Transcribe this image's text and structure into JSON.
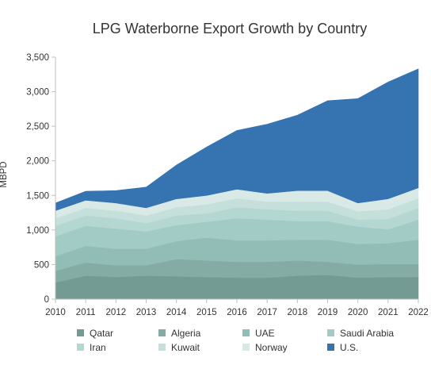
{
  "chart_data": {
    "type": "area",
    "stacked": true,
    "title": "LPG Waterborne Export Growth by Country",
    "xlabel": "",
    "ylabel": "MBPD",
    "x": [
      "2010",
      "2011",
      "2012",
      "2013",
      "2014",
      "2015",
      "2016",
      "2017",
      "2018",
      "2019",
      "2020",
      "2021",
      "2022"
    ],
    "ylim": [
      0,
      3500
    ],
    "yticks": [
      0,
      500,
      1000,
      1500,
      2000,
      2500,
      3000,
      3500
    ],
    "ytick_labels": [
      "0",
      "500",
      "1,000",
      "1,500",
      "2,000",
      "2,500",
      "3,000",
      "3,500"
    ],
    "grid": false,
    "legend_position": "bottom",
    "series": [
      {
        "name": "Qatar",
        "color": "#739b93",
        "values": [
          240,
          340,
          320,
          340,
          330,
          320,
          310,
          310,
          340,
          350,
          310,
          320,
          320
        ]
      },
      {
        "name": "Algeria",
        "color": "#84aca4",
        "values": [
          170,
          190,
          170,
          150,
          250,
          240,
          230,
          230,
          220,
          190,
          190,
          190,
          190
        ]
      },
      {
        "name": "UAE",
        "color": "#92bcb6",
        "values": [
          210,
          240,
          240,
          240,
          260,
          330,
          310,
          310,
          300,
          320,
          300,
          300,
          350
        ]
      },
      {
        "name": "Saudi Arabia",
        "color": "#a2cbc6",
        "values": [
          290,
          290,
          290,
          250,
          230,
          230,
          320,
          300,
          270,
          270,
          250,
          200,
          290
        ]
      },
      {
        "name": "Iran",
        "color": "#b5d7d2",
        "values": [
          150,
          150,
          150,
          120,
          140,
          120,
          160,
          150,
          150,
          150,
          100,
          150,
          170
        ]
      },
      {
        "name": "Kuwait",
        "color": "#c5dfdb",
        "values": [
          110,
          110,
          110,
          110,
          120,
          130,
          130,
          110,
          130,
          130,
          120,
          140,
          140
        ]
      },
      {
        "name": "Norway",
        "color": "#d8e9e6",
        "values": [
          110,
          110,
          110,
          110,
          120,
          130,
          130,
          120,
          160,
          160,
          120,
          150,
          150
        ]
      },
      {
        "name": "U.S.",
        "color": "#3573b1",
        "values": [
          110,
          130,
          180,
          300,
          490,
          700,
          850,
          1000,
          1090,
          1300,
          1510,
          1690,
          1720
        ]
      }
    ]
  }
}
